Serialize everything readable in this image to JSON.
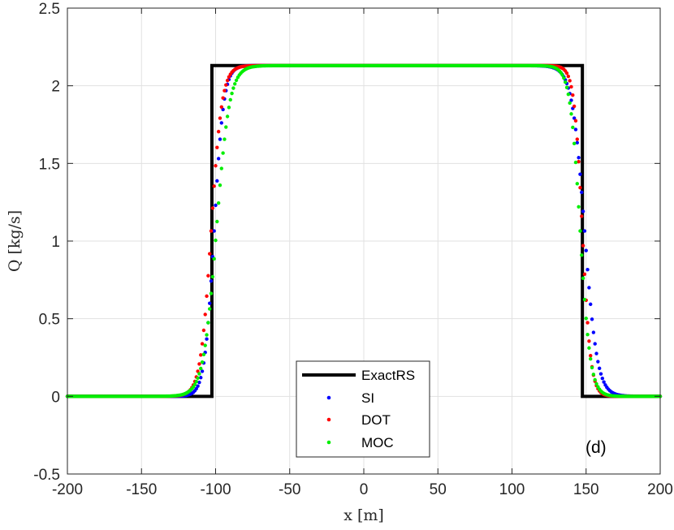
{
  "chart_data": {
    "type": "line",
    "xlabel": "x [m]",
    "ylabel": "Q [kg/s]",
    "xlim": [
      -200,
      200
    ],
    "ylim": [
      -0.5,
      2.5
    ],
    "xticks": [
      -200,
      -150,
      -100,
      -50,
      0,
      50,
      100,
      150,
      200
    ],
    "yticks": [
      -0.5,
      0,
      0.5,
      1,
      1.5,
      2,
      2.5
    ],
    "xtick_labels": [
      "-200",
      "-150",
      "-100",
      "-50",
      "0",
      "50",
      "100",
      "150",
      "200"
    ],
    "ytick_labels": [
      "-0.5",
      "0",
      "0.5",
      "1",
      "1.5",
      "2",
      "2.5"
    ],
    "grid": true,
    "legend_position": "bottom-center",
    "annotation": "(d)",
    "plateau": 2.13,
    "series": [
      {
        "name": "ExactRS",
        "style": "line",
        "color": "#000000",
        "left_edge": -102.5,
        "right_edge": 147.5
      },
      {
        "name": "SI",
        "style": "dots",
        "color": "#0000ff",
        "left_center": -101,
        "left_width": 3.2,
        "right_center": 149,
        "right_width": 4.2
      },
      {
        "name": "DOT",
        "style": "dots",
        "color": "#ff0000",
        "left_center": -103,
        "left_width": 3.6,
        "right_center": 147.5,
        "right_width": 2.8
      },
      {
        "name": "MOC",
        "style": "dots",
        "color": "#00ee00",
        "left_center": -99.5,
        "left_width": 4.4,
        "right_center": 146,
        "right_width": 3.4
      }
    ]
  }
}
